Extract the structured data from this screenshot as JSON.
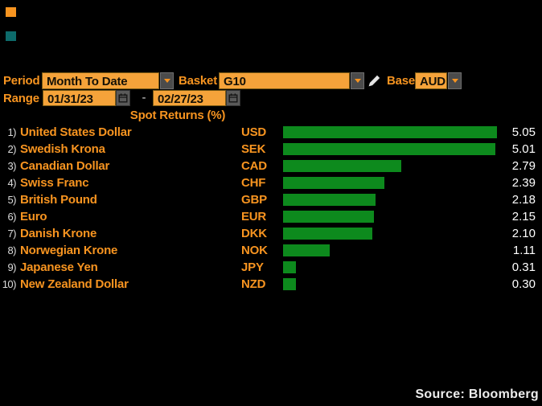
{
  "markers": {
    "orange": "#f79420",
    "teal": "#0d6b6b"
  },
  "controls": {
    "period": {
      "label": "Period",
      "value": "Month To Date"
    },
    "basket": {
      "label": "Basket",
      "value": "G10"
    },
    "base": {
      "label": "Base",
      "value": "AUD"
    },
    "range": {
      "label": "Range",
      "start": "01/31/23",
      "separator": "-",
      "end": "02/27/23"
    }
  },
  "chart_data": {
    "type": "bar",
    "orientation": "horizontal",
    "title": "Spot Returns (%)",
    "max_value": 5.05,
    "values": [
      5.05,
      5.01,
      2.79,
      2.39,
      2.18,
      2.15,
      2.1,
      1.11,
      0.31,
      0.3
    ],
    "rows": [
      {
        "index": "1)",
        "name": "United States Dollar",
        "code": "USD",
        "value": "5.05"
      },
      {
        "index": "2)",
        "name": "Swedish Krona",
        "code": "SEK",
        "value": "5.01"
      },
      {
        "index": "3)",
        "name": "Canadian Dollar",
        "code": "CAD",
        "value": "2.79"
      },
      {
        "index": "4)",
        "name": "Swiss Franc",
        "code": "CHF",
        "value": "2.39"
      },
      {
        "index": "5)",
        "name": "British Pound",
        "code": "GBP",
        "value": "2.18"
      },
      {
        "index": "6)",
        "name": "Euro",
        "code": "EUR",
        "value": "2.15"
      },
      {
        "index": "7)",
        "name": "Danish Krone",
        "code": "DKK",
        "value": "2.10"
      },
      {
        "index": "8)",
        "name": "Norwegian Krone",
        "code": "NOK",
        "value": "1.11"
      },
      {
        "index": "9)",
        "name": "Japanese Yen",
        "code": "JPY",
        "value": "0.31"
      },
      {
        "index": "10)",
        "name": "New Zealand Dollar",
        "code": "NZD",
        "value": "0.30"
      }
    ]
  },
  "colors": {
    "background": "#000000",
    "accent_orange": "#f79420",
    "field_orange": "#f5a33a",
    "bar_green": "#0d8a1d",
    "value_white": "#ffffff"
  },
  "footer": {
    "source": "Source: Bloomberg"
  }
}
